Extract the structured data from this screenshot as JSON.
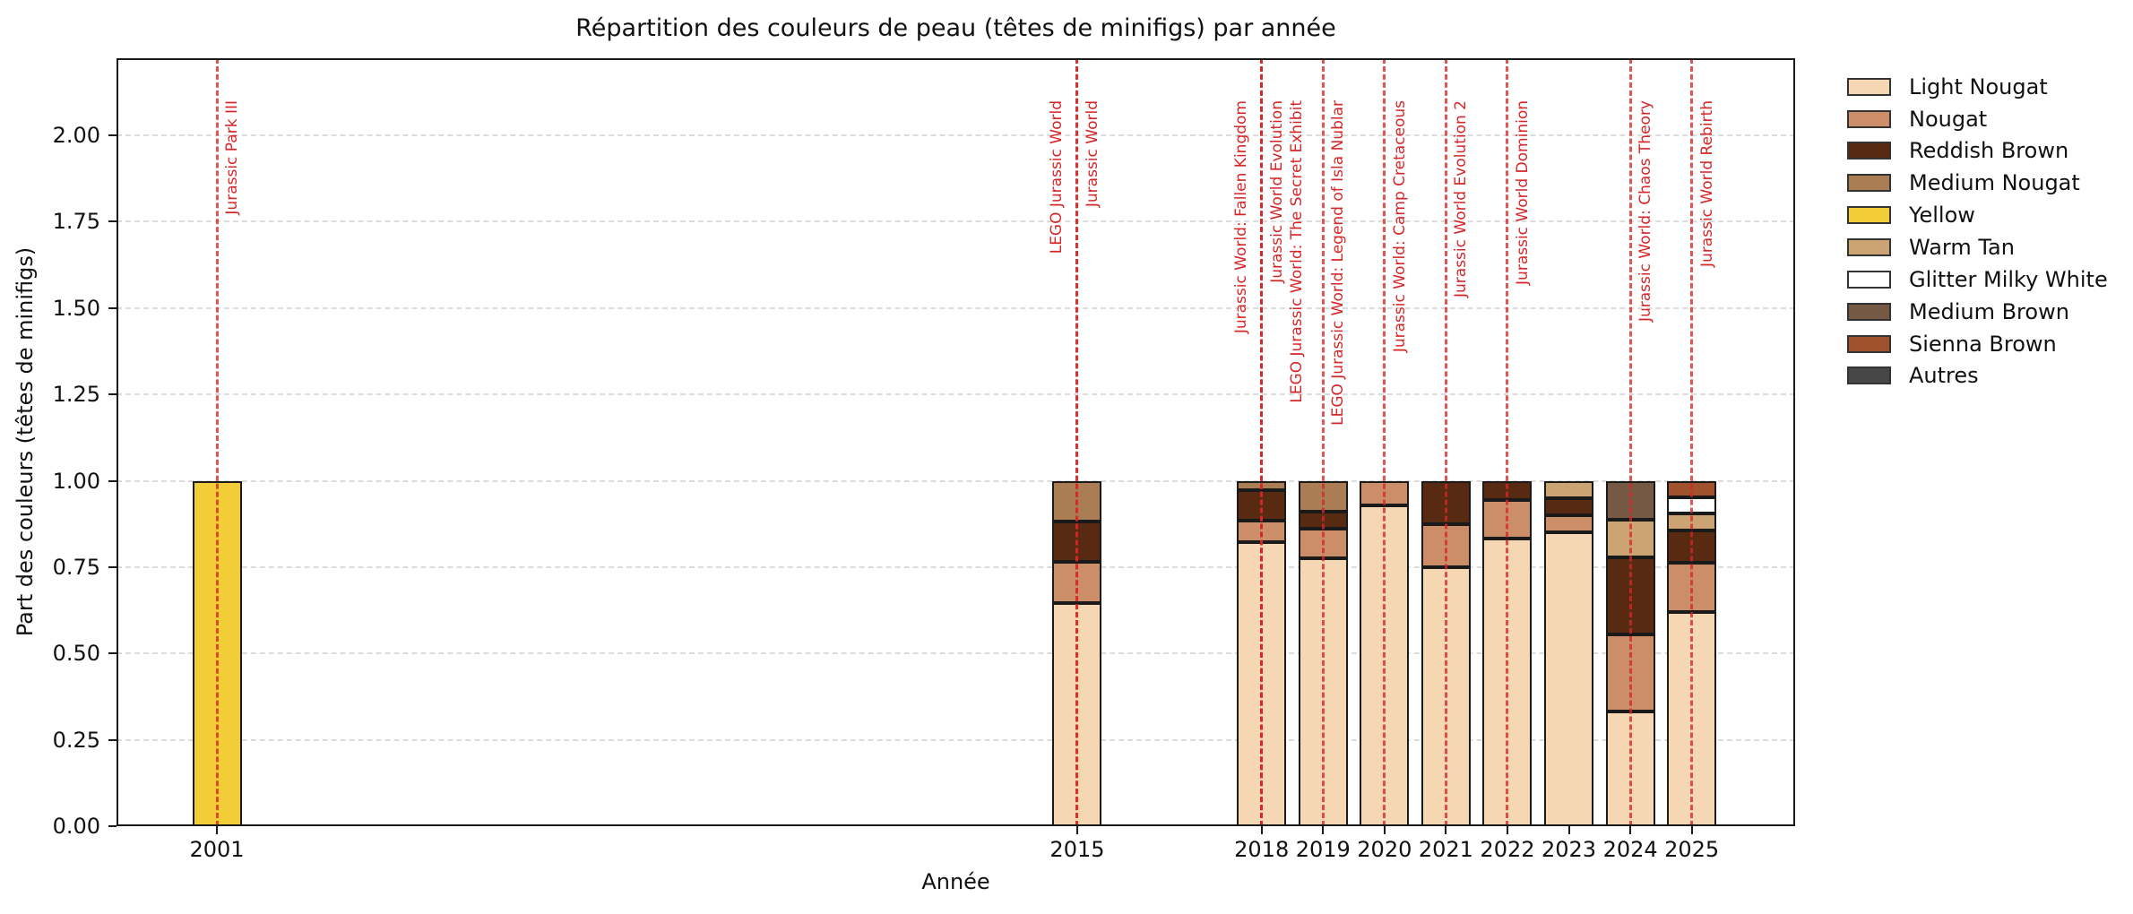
{
  "chart_data": {
    "type": "bar",
    "stacked": true,
    "title": "Répartition des couleurs de peau (têtes de minifigs) par année",
    "xlabel": "Année",
    "ylabel": "Part des couleurs (têtes de minifigs)",
    "categories": [
      2001,
      2015,
      2018,
      2019,
      2020,
      2021,
      2022,
      2023,
      2024,
      2025
    ],
    "series": [
      {
        "name": "Light Nougat",
        "color": "#F6D7B3",
        "values": [
          0,
          0.647,
          0.823,
          0.776,
          0.929,
          0.75,
          0.833,
          0.85,
          0.333,
          0.619
        ]
      },
      {
        "name": "Nougat",
        "color": "#CC8E69",
        "values": [
          0,
          0.118,
          0.061,
          0.086,
          0.071,
          0.125,
          0.111,
          0.05,
          0.222,
          0.143
        ]
      },
      {
        "name": "Reddish Brown",
        "color": "#582A12",
        "values": [
          0,
          0.118,
          0.089,
          0.049,
          0,
          0.125,
          0.056,
          0.05,
          0.222,
          0.095
        ]
      },
      {
        "name": "Medium Nougat",
        "color": "#AA7D55",
        "values": [
          0,
          0.117,
          0.027,
          0.089,
          0,
          0,
          0,
          0,
          0,
          0
        ]
      },
      {
        "name": "Yellow",
        "color": "#F2CD37",
        "values": [
          1.0,
          0,
          0,
          0,
          0,
          0,
          0,
          0,
          0,
          0
        ]
      },
      {
        "name": "Warm Tan",
        "color": "#CCA373",
        "values": [
          0,
          0,
          0,
          0,
          0,
          0,
          0,
          0.05,
          0.111,
          0.048
        ]
      },
      {
        "name": "Glitter Milky White",
        "color": "#FFFFFF",
        "values": [
          0,
          0,
          0,
          0,
          0,
          0,
          0,
          0,
          0,
          0.048
        ]
      },
      {
        "name": "Medium Brown",
        "color": "#755945",
        "values": [
          0,
          0,
          0,
          0,
          0,
          0,
          0,
          0,
          0.111,
          0
        ]
      },
      {
        "name": "Sienna Brown",
        "color": "#A0522D",
        "values": [
          0,
          0,
          0,
          0,
          0,
          0,
          0,
          0,
          0,
          0.047
        ]
      },
      {
        "name": "Autres",
        "color": "#474747",
        "values": [
          0,
          0,
          0,
          0,
          0,
          0,
          0,
          0,
          0,
          0
        ]
      }
    ],
    "events": [
      {
        "year": 2001,
        "label": "Jurassic Park III",
        "side": "right"
      },
      {
        "year": 2015,
        "label": "LEGO Jurassic World",
        "side": "left"
      },
      {
        "year": 2015,
        "label": "Jurassic World",
        "side": "right"
      },
      {
        "year": 2018,
        "label": "Jurassic World: Fallen Kingdom",
        "side": "left"
      },
      {
        "year": 2018,
        "label": "Jurassic World Evolution",
        "side": "right"
      },
      {
        "year": 2018,
        "label": "LEGO Jurassic World: The Secret Exhibit",
        "side": "right-2"
      },
      {
        "year": 2019,
        "label": "LEGO Jurassic World: Legend of Isla Nublar",
        "side": "right"
      },
      {
        "year": 2020,
        "label": "Jurassic World: Camp Cretaceous",
        "side": "right"
      },
      {
        "year": 2021,
        "label": "Jurassic World Evolution 2",
        "side": "right"
      },
      {
        "year": 2022,
        "label": "Jurassic World Dominion",
        "side": "right"
      },
      {
        "year": 2024,
        "label": "Jurassic World: Chaos Theory",
        "side": "right"
      },
      {
        "year": 2025,
        "label": "Jurassic World Rebirth",
        "side": "right"
      }
    ],
    "yticks": [
      "0.00",
      "0.25",
      "0.50",
      "0.75",
      "1.00",
      "1.25",
      "1.50",
      "1.75",
      "2.00"
    ],
    "ylim": [
      0,
      2.22
    ],
    "xlim": [
      1999.4,
      2026.7
    ],
    "grid": "horizontal-dashed",
    "legend_position": "outside-right-top",
    "event_line_color": "#d62728",
    "bar_edge_color": "#1a1a1a"
  }
}
